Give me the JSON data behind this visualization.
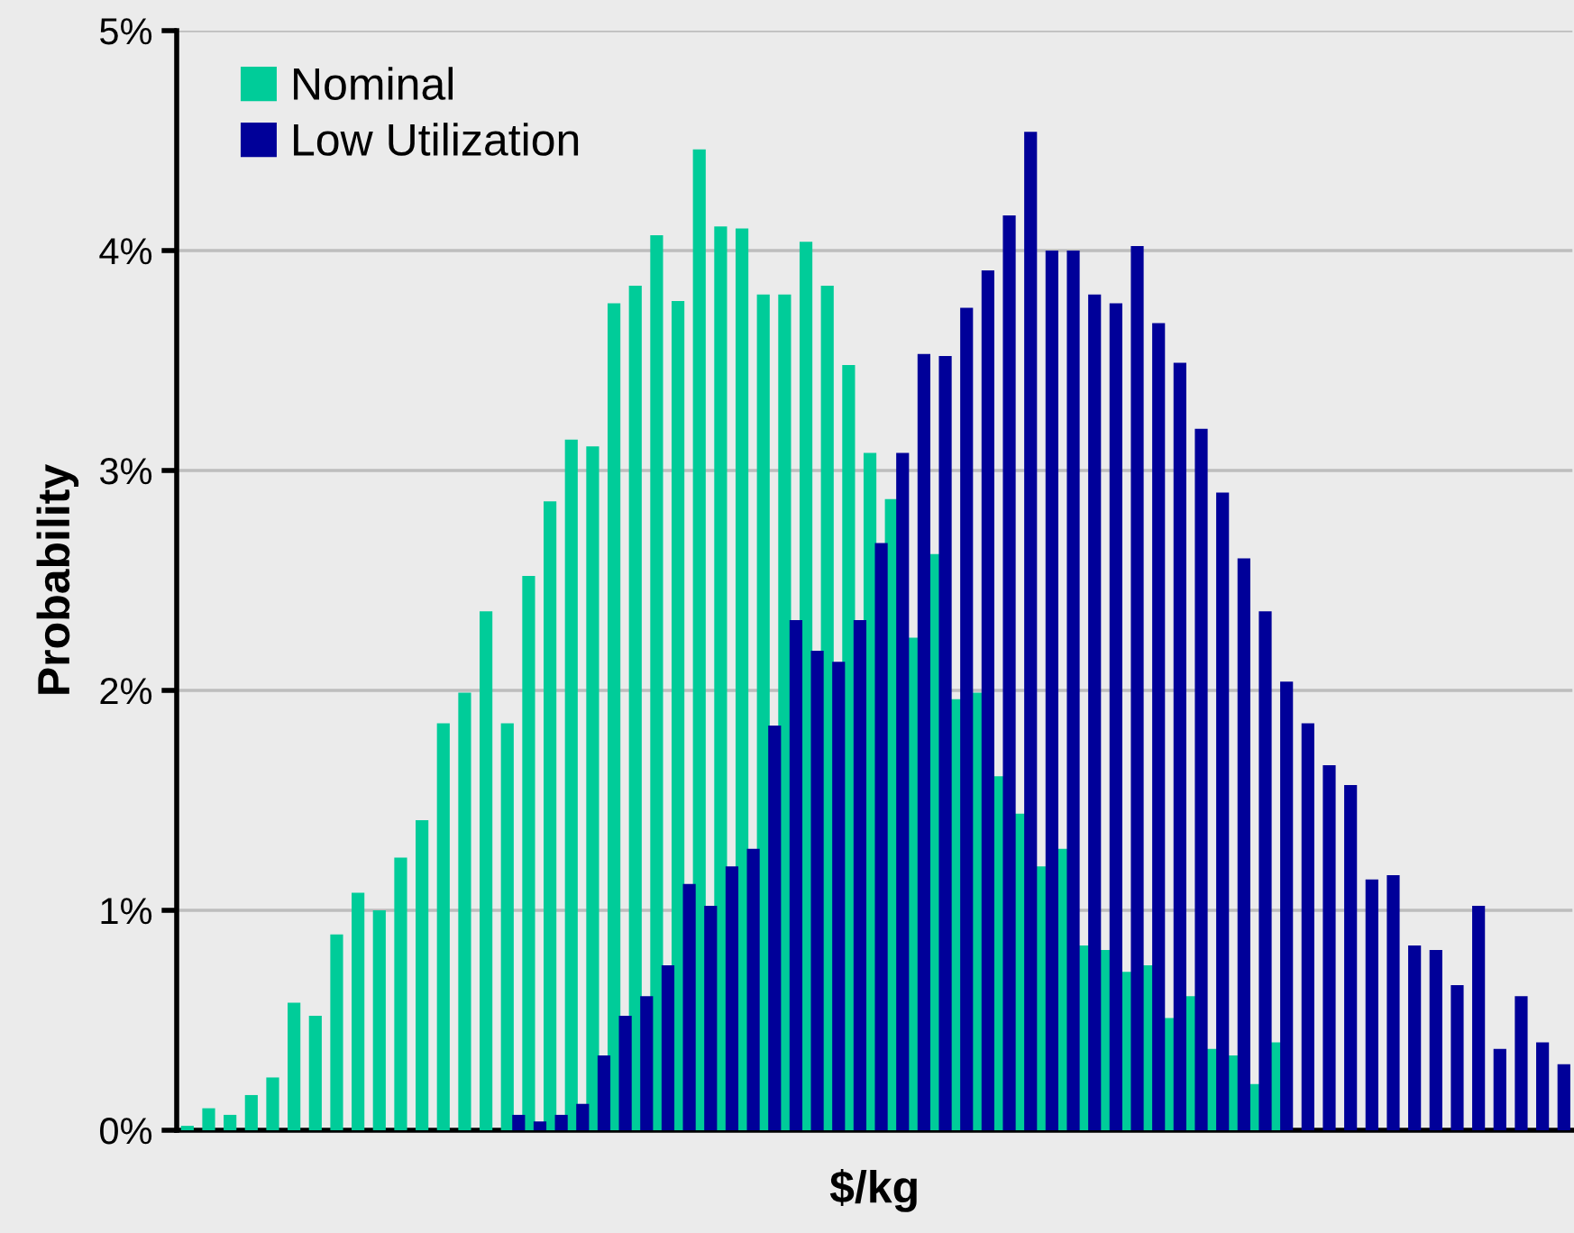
{
  "chart_data": {
    "type": "bar",
    "xlabel": "$/kg",
    "ylabel": "Probability",
    "categories": [
      null,
      null,
      null,
      null,
      null,
      null,
      null,
      null,
      null,
      null,
      null,
      null,
      null,
      null,
      null,
      null,
      null,
      null,
      null,
      null,
      null,
      null,
      null,
      null,
      null,
      null,
      null,
      null,
      null,
      null,
      null,
      null,
      null,
      null,
      null,
      null,
      null,
      null,
      null,
      null,
      null,
      null,
      null,
      null,
      null,
      null,
      null,
      null,
      null,
      null,
      null,
      null,
      null,
      null,
      null,
      null,
      null,
      null,
      null,
      null,
      null,
      null,
      null,
      null,
      null
    ],
    "series": [
      {
        "name": "Nominal",
        "color": "#00cc99",
        "values": [
          0.02,
          0.1,
          0.07,
          0.16,
          0.24,
          0.58,
          0.52,
          0.89,
          1.08,
          1.0,
          1.24,
          1.41,
          1.85,
          1.99,
          2.36,
          1.85,
          2.52,
          2.86,
          3.14,
          3.11,
          3.76,
          3.84,
          4.07,
          3.77,
          4.46,
          4.11,
          4.1,
          3.8,
          3.8,
          4.04,
          3.84,
          3.48,
          3.08,
          2.87,
          2.24,
          2.62,
          1.96,
          1.99,
          1.61,
          1.44,
          1.2,
          1.28,
          0.84,
          0.82,
          0.72,
          0.75,
          0.51,
          0.61,
          0.37,
          0.34,
          0.21,
          0.4,
          null,
          null,
          null,
          null,
          null,
          null,
          null,
          null,
          null,
          null,
          null,
          null,
          null
        ]
      },
      {
        "name": "Low Utilization",
        "color": "#000099",
        "values": [
          null,
          null,
          null,
          null,
          null,
          null,
          null,
          null,
          null,
          null,
          null,
          null,
          null,
          null,
          null,
          0.07,
          0.04,
          0.07,
          0.12,
          0.34,
          0.52,
          0.61,
          0.75,
          1.12,
          1.02,
          1.2,
          1.28,
          1.84,
          2.32,
          2.18,
          2.13,
          2.32,
          2.67,
          3.08,
          3.53,
          3.52,
          3.74,
          3.91,
          4.16,
          4.54,
          4.0,
          4.0,
          3.8,
          3.76,
          4.02,
          3.67,
          3.49,
          3.19,
          2.9,
          2.6,
          2.36,
          2.04,
          1.85,
          1.66,
          1.57,
          1.14,
          1.16,
          0.84,
          0.82,
          0.66,
          1.02,
          0.37,
          0.61,
          0.4,
          0.3
        ]
      }
    ],
    "ylim": [
      0,
      5
    ],
    "yticks": [
      {
        "value": 0,
        "label": "0%"
      },
      {
        "value": 1,
        "label": "1%"
      },
      {
        "value": 2,
        "label": "2%"
      },
      {
        "value": 3,
        "label": "3%"
      },
      {
        "value": 4,
        "label": "4%"
      },
      {
        "value": 5,
        "label": "5%"
      }
    ],
    "grid": "y",
    "legend": "top left"
  }
}
